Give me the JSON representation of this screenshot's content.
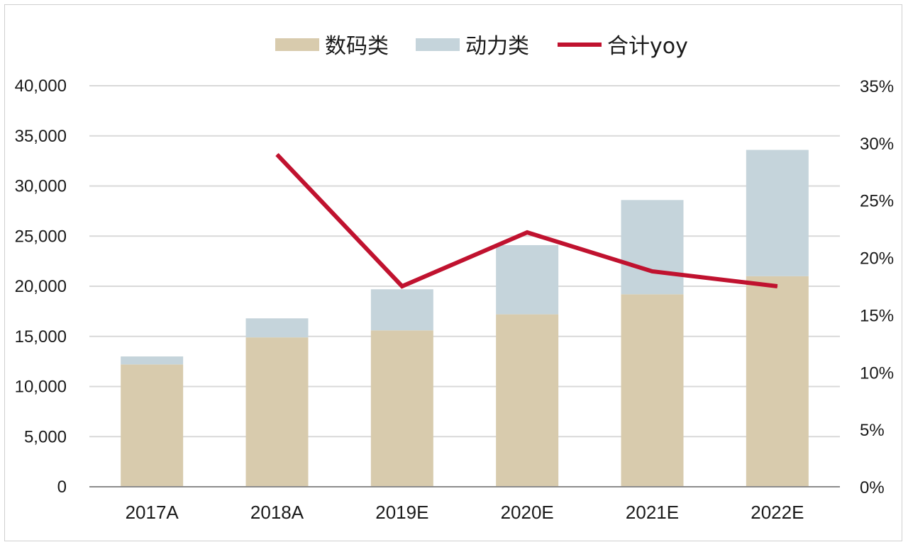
{
  "chart_data": {
    "type": "bar",
    "stacked": true,
    "categories": [
      "2017A",
      "2018A",
      "2019E",
      "2020E",
      "2021E",
      "2022E"
    ],
    "series": [
      {
        "name": "数码类",
        "kind": "bar",
        "axis": "left",
        "color": "#d8cbad",
        "values": [
          12200,
          14900,
          15600,
          17200,
          19200,
          21000
        ]
      },
      {
        "name": "动力类",
        "kind": "bar",
        "axis": "left",
        "color": "#c5d4db",
        "values": [
          800,
          1900,
          4100,
          6900,
          9400,
          12600
        ]
      },
      {
        "name": "合计yoy",
        "kind": "line",
        "axis": "right",
        "color": "#c0122f",
        "values": [
          null,
          0.29,
          0.175,
          0.222,
          0.188,
          0.175
        ]
      }
    ],
    "y_left": {
      "min": 0,
      "max": 40000,
      "ticks": [
        "0",
        "5,000",
        "10,000",
        "15,000",
        "20,000",
        "25,000",
        "30,000",
        "35,000",
        "40,000"
      ]
    },
    "y_right": {
      "min": 0,
      "max": 0.35,
      "ticks": [
        "0%",
        "5%",
        "10%",
        "15%",
        "20%",
        "25%",
        "30%",
        "35%"
      ]
    },
    "grid": true,
    "legend_position": "top"
  }
}
